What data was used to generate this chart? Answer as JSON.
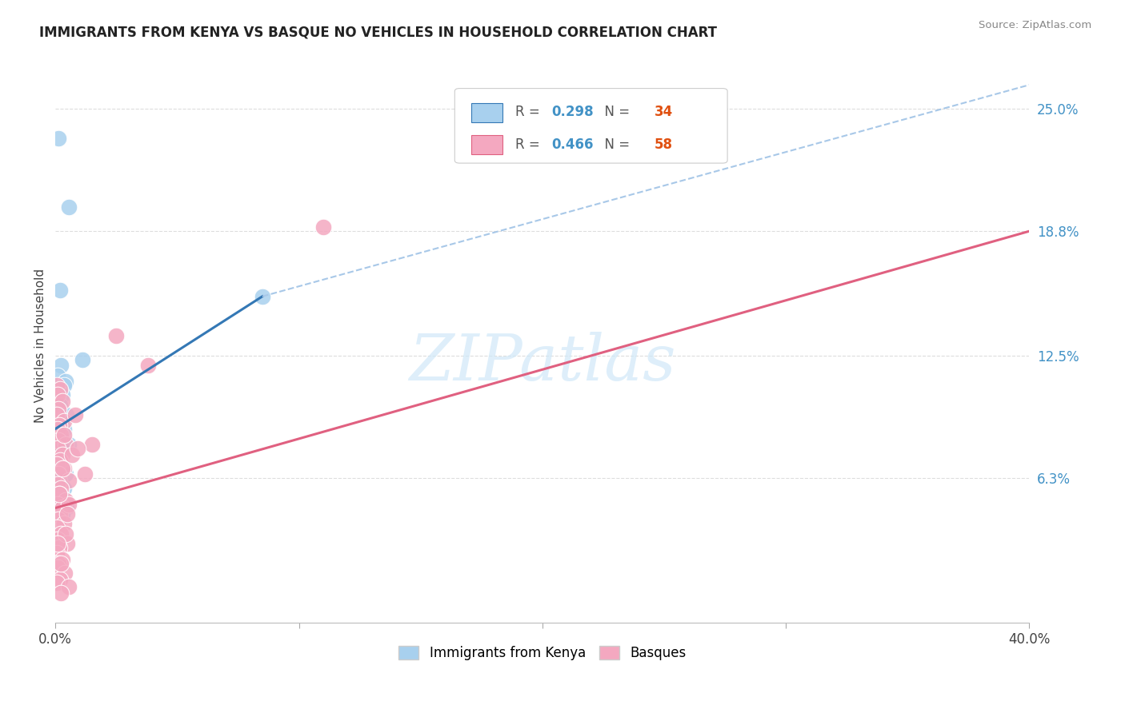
{
  "title": "IMMIGRANTS FROM KENYA VS BASQUE NO VEHICLES IN HOUSEHOLD CORRELATION CHART",
  "source": "Source: ZipAtlas.com",
  "ylabel": "No Vehicles in Household",
  "ytick_labels": [
    "25.0%",
    "18.8%",
    "12.5%",
    "6.3%"
  ],
  "ytick_values": [
    25.0,
    18.8,
    12.5,
    6.3
  ],
  "xlim": [
    0.0,
    40.0
  ],
  "ylim": [
    -1.0,
    27.0
  ],
  "blue_scatter": [
    [
      0.12,
      23.5
    ],
    [
      0.55,
      20.0
    ],
    [
      0.18,
      15.8
    ],
    [
      1.1,
      12.3
    ],
    [
      0.22,
      12.0
    ],
    [
      0.08,
      11.5
    ],
    [
      0.42,
      11.2
    ],
    [
      0.35,
      11.0
    ],
    [
      0.15,
      10.8
    ],
    [
      0.28,
      10.5
    ],
    [
      0.18,
      10.0
    ],
    [
      0.08,
      9.8
    ],
    [
      0.45,
      9.5
    ],
    [
      0.22,
      9.2
    ],
    [
      0.1,
      9.0
    ],
    [
      0.35,
      8.8
    ],
    [
      0.12,
      8.5
    ],
    [
      0.25,
      8.3
    ],
    [
      0.08,
      8.2
    ],
    [
      0.55,
      8.0
    ],
    [
      0.3,
      7.8
    ],
    [
      0.18,
      7.5
    ],
    [
      0.12,
      7.2
    ],
    [
      0.08,
      7.0
    ],
    [
      0.28,
      6.8
    ],
    [
      0.42,
      6.5
    ],
    [
      0.15,
      6.2
    ],
    [
      0.35,
      5.8
    ],
    [
      0.22,
      5.5
    ],
    [
      0.18,
      5.2
    ],
    [
      0.45,
      4.8
    ],
    [
      0.28,
      4.5
    ],
    [
      8.5,
      15.5
    ],
    [
      0.08,
      8.5
    ]
  ],
  "pink_scatter": [
    [
      0.05,
      11.0
    ],
    [
      0.18,
      10.8
    ],
    [
      0.08,
      10.5
    ],
    [
      0.28,
      10.2
    ],
    [
      0.12,
      9.8
    ],
    [
      0.05,
      9.5
    ],
    [
      0.35,
      9.2
    ],
    [
      0.15,
      9.0
    ],
    [
      0.08,
      8.8
    ],
    [
      0.22,
      8.5
    ],
    [
      0.12,
      8.2
    ],
    [
      0.42,
      8.0
    ],
    [
      0.08,
      7.8
    ],
    [
      0.28,
      7.5
    ],
    [
      0.18,
      7.2
    ],
    [
      0.05,
      7.0
    ],
    [
      0.35,
      6.8
    ],
    [
      0.12,
      6.5
    ],
    [
      0.55,
      6.2
    ],
    [
      0.08,
      6.0
    ],
    [
      0.22,
      5.8
    ],
    [
      0.15,
      5.5
    ],
    [
      0.42,
      5.2
    ],
    [
      0.08,
      5.0
    ],
    [
      0.28,
      4.8
    ],
    [
      0.18,
      4.5
    ],
    [
      0.12,
      4.2
    ],
    [
      0.35,
      4.0
    ],
    [
      0.05,
      3.8
    ],
    [
      0.22,
      3.5
    ],
    [
      0.08,
      3.2
    ],
    [
      0.48,
      3.0
    ],
    [
      0.15,
      2.8
    ],
    [
      0.05,
      2.5
    ],
    [
      0.28,
      2.2
    ],
    [
      0.12,
      2.0
    ],
    [
      0.08,
      1.8
    ],
    [
      0.38,
      1.5
    ],
    [
      0.18,
      1.2
    ],
    [
      0.05,
      1.0
    ],
    [
      0.55,
      0.8
    ],
    [
      0.22,
      0.5
    ],
    [
      1.5,
      8.0
    ],
    [
      2.5,
      13.5
    ],
    [
      3.8,
      12.0
    ],
    [
      0.8,
      9.5
    ],
    [
      11.0,
      19.0
    ],
    [
      0.68,
      7.5
    ],
    [
      0.55,
      5.0
    ],
    [
      0.42,
      3.5
    ],
    [
      1.2,
      6.5
    ],
    [
      0.9,
      7.8
    ],
    [
      0.35,
      8.5
    ],
    [
      0.28,
      6.8
    ],
    [
      0.15,
      5.5
    ],
    [
      0.48,
      4.5
    ],
    [
      0.08,
      3.0
    ],
    [
      0.22,
      2.0
    ]
  ],
  "blue_line": {
    "x0": 0.0,
    "y0": 8.8,
    "x1": 8.5,
    "y1": 15.5
  },
  "blue_dashed_line": {
    "x0": 8.5,
    "y0": 15.5,
    "x1": 40.0,
    "y1": 26.2
  },
  "pink_line": {
    "x0": 0.0,
    "y0": 4.8,
    "x1": 40.0,
    "y1": 18.8
  },
  "blue_color": "#a8d0ee",
  "pink_color": "#f4a8c0",
  "blue_line_color": "#3478b5",
  "pink_line_color": "#e06080",
  "dashed_line_color": "#a8c8e8",
  "watermark_text": "ZIPatlas",
  "watermark_color": "#d0e8f8",
  "background_color": "#ffffff",
  "grid_color": "#dddddd",
  "legend_r_vals": [
    "0.298",
    "0.466"
  ],
  "legend_n_vals": [
    "34",
    "58"
  ],
  "legend_r_color": "#4292c6",
  "legend_n_color": "#e05010",
  "title_fontsize": 12,
  "tick_fontsize": 12,
  "ylabel_fontsize": 11
}
